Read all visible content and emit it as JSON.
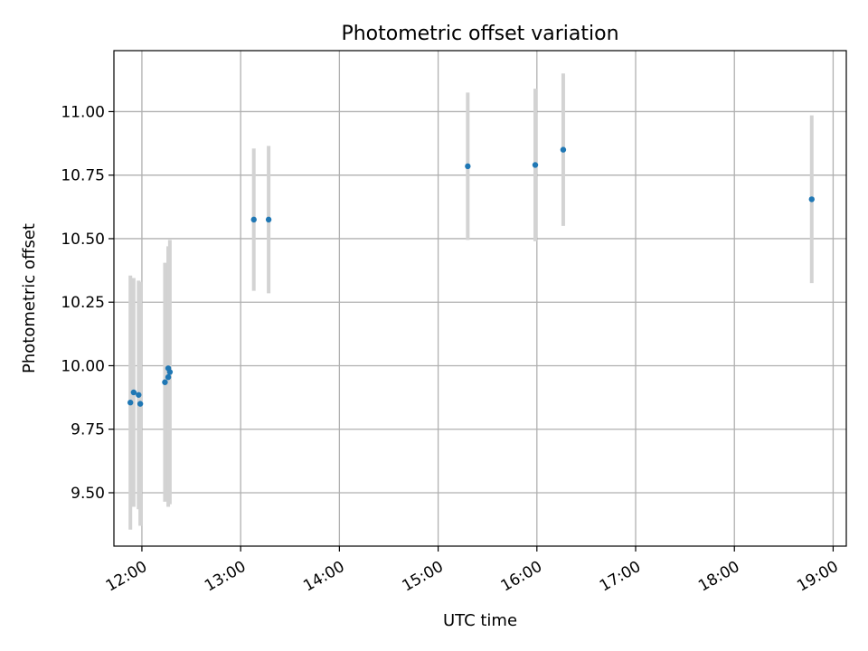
{
  "chart_data": {
    "type": "scatter",
    "title": "Photometric offset variation",
    "xlabel": "UTC time",
    "ylabel": "Photometric offset",
    "x_ticks": [
      "12:00",
      "13:00",
      "14:00",
      "15:00",
      "16:00",
      "17:00",
      "18:00",
      "19:00"
    ],
    "y_ticks": [
      "9.50",
      "9.75",
      "10.00",
      "10.25",
      "10.50",
      "10.75",
      "11.00"
    ],
    "xlim": [
      "11:43",
      "19:08"
    ],
    "ylim": [
      9.29,
      11.24
    ],
    "grid": true,
    "colors": {
      "point": "#1f77b4",
      "errorbar": "#d3d3d3",
      "grid": "#b0b0b0"
    },
    "points": [
      {
        "x": "11:53",
        "y": 9.855,
        "err": 0.5
      },
      {
        "x": "11:55",
        "y": 9.895,
        "err": 0.45
      },
      {
        "x": "11:58",
        "y": 9.885,
        "err": 0.45
      },
      {
        "x": "11:59",
        "y": 9.85,
        "err": 0.48
      },
      {
        "x": "12:14",
        "y": 9.935,
        "err": 0.47
      },
      {
        "x": "12:16",
        "y": 9.955,
        "err": 0.51
      },
      {
        "x": "12:16",
        "y": 9.99,
        "err": 0.48
      },
      {
        "x": "12:17",
        "y": 9.975,
        "err": 0.52
      },
      {
        "x": "13:08",
        "y": 10.575,
        "err": 0.28
      },
      {
        "x": "13:17",
        "y": 10.575,
        "err": 0.29
      },
      {
        "x": "15:18",
        "y": 10.785,
        "err": 0.29
      },
      {
        "x": "15:59",
        "y": 10.79,
        "err": 0.3
      },
      {
        "x": "16:16",
        "y": 10.85,
        "err": 0.3
      },
      {
        "x": "18:47",
        "y": 10.655,
        "err": 0.33
      }
    ]
  }
}
